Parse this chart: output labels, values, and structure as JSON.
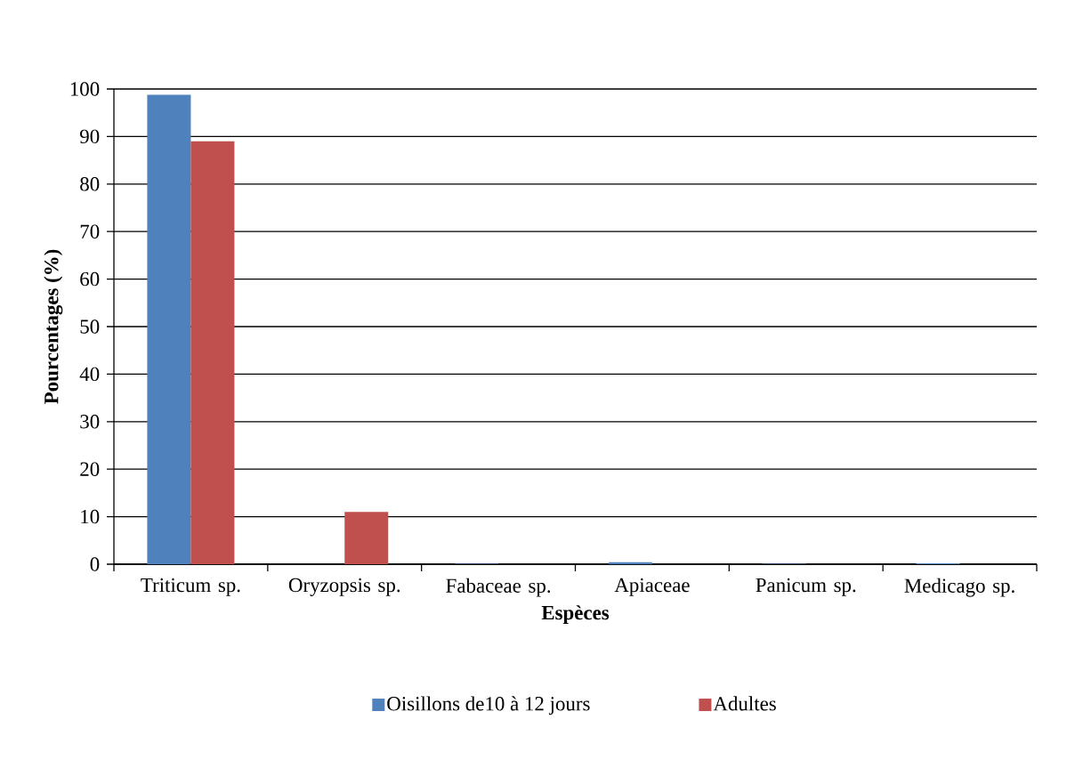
{
  "chart_data": {
    "type": "bar",
    "xlabel": "Espèces",
    "ylabel": "Pourcentages (%)",
    "categories": [
      "Triticum sp.",
      "Oryzopsis sp.",
      "Fabaceae sp.",
      "Apiaceae",
      "Panicum sp.",
      "Medicago sp."
    ],
    "series": [
      {
        "name": "Oisillons de10 à 12 jours",
        "color": "#4f81bd",
        "values": [
          98.8,
          0,
          0.1,
          0.4,
          0.1,
          0.2
        ]
      },
      {
        "name": "Adultes",
        "color": "#c0504d",
        "values": [
          89,
          11,
          0,
          0,
          0,
          0
        ]
      }
    ],
    "ylim": [
      0,
      100
    ],
    "yticks": [
      0,
      10,
      20,
      30,
      40,
      50,
      60,
      70,
      80,
      90,
      100
    ],
    "grid": "y",
    "legend": "bottom"
  }
}
